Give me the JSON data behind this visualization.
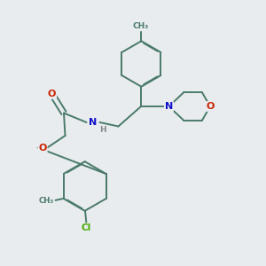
{
  "background_color": "#e8ecee",
  "bond_color": "#4a7a6a",
  "atom_colors": {
    "N": "#1010cc",
    "O": "#cc2200",
    "Cl": "#44aa00",
    "H": "#888888"
  },
  "figsize": [
    3.0,
    3.0
  ],
  "dpi": 100
}
